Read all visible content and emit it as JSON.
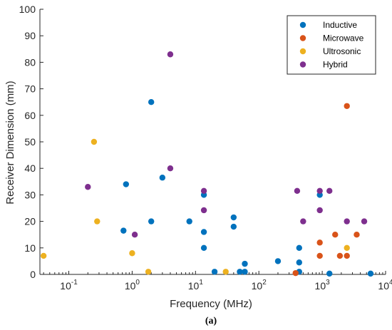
{
  "chart_data": {
    "type": "scatter",
    "xlabel": "Frequency (MHz)",
    "ylabel": "Receiver Dimension (mm)",
    "xscale": "log",
    "xlim": [
      0.035,
      10000
    ],
    "ylim": [
      0,
      100
    ],
    "xticks": [
      {
        "value": 0.1,
        "base": "10",
        "exp": "-1"
      },
      {
        "value": 1,
        "base": "10",
        "exp": "0"
      },
      {
        "value": 10,
        "base": "10",
        "exp": "1"
      },
      {
        "value": 100,
        "base": "10",
        "exp": "2"
      },
      {
        "value": 1000,
        "base": "10",
        "exp": "3"
      },
      {
        "value": 10000,
        "base": "10",
        "exp": "4"
      }
    ],
    "yticks": [
      0,
      10,
      20,
      30,
      40,
      50,
      60,
      70,
      80,
      90,
      100
    ],
    "grid": false,
    "legend_position": "top-right",
    "caption": "(a)",
    "series": [
      {
        "name": "Inductive",
        "color": "#0072BD",
        "points": [
          [
            0.73,
            16.5
          ],
          [
            0.8,
            34
          ],
          [
            2.0,
            65
          ],
          [
            2.0,
            20
          ],
          [
            3.0,
            36.5
          ],
          [
            8.0,
            20
          ],
          [
            13.56,
            30
          ],
          [
            13.56,
            16
          ],
          [
            13.56,
            10
          ],
          [
            20,
            1
          ],
          [
            40,
            21.5
          ],
          [
            40,
            18
          ],
          [
            50,
            1
          ],
          [
            60,
            4
          ],
          [
            60,
            1
          ],
          [
            200,
            5
          ],
          [
            433,
            10
          ],
          [
            433,
            4.5
          ],
          [
            433,
            1
          ],
          [
            915,
            30
          ],
          [
            1300,
            0.3
          ],
          [
            5800,
            0.3
          ]
        ]
      },
      {
        "name": "Microwave",
        "color": "#D95319",
        "points": [
          [
            380,
            0.5
          ],
          [
            915,
            12
          ],
          [
            915,
            7
          ],
          [
            1600,
            15
          ],
          [
            1900,
            7
          ],
          [
            2450,
            63.5
          ],
          [
            2450,
            7
          ],
          [
            3500,
            15
          ]
        ]
      },
      {
        "name": "Ultrosonic",
        "color": "#EDB120",
        "points": [
          [
            0.04,
            7
          ],
          [
            0.25,
            50
          ],
          [
            0.28,
            20
          ],
          [
            1.0,
            8
          ],
          [
            1.8,
            1
          ],
          [
            30,
            1
          ],
          [
            2450,
            10
          ]
        ]
      },
      {
        "name": "Hybrid",
        "color": "#7E2F8E",
        "points": [
          [
            0.2,
            33
          ],
          [
            1.1,
            15
          ],
          [
            4.0,
            83
          ],
          [
            4.0,
            40
          ],
          [
            13.56,
            31.5
          ],
          [
            13.56,
            24.2
          ],
          [
            402,
            31.5
          ],
          [
            500,
            20
          ],
          [
            915,
            31.5
          ],
          [
            915,
            24.2
          ],
          [
            1300,
            31.5
          ],
          [
            2450,
            20
          ],
          [
            4600,
            20
          ]
        ]
      }
    ]
  }
}
